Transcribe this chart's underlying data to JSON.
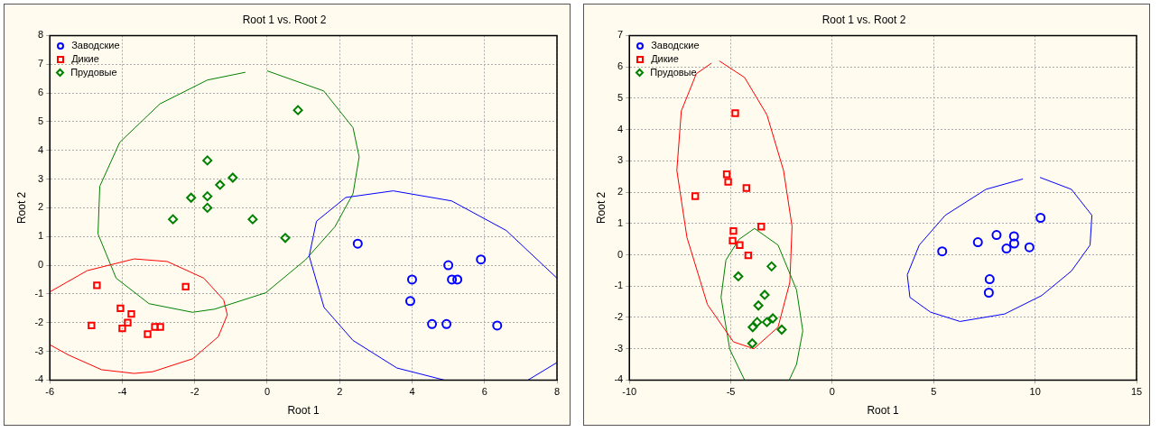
{
  "chart_data": [
    {
      "type": "scatter",
      "title": "Root 1 vs. Root 2",
      "xlabel": "Root 1",
      "ylabel": "Root 2",
      "xlim": [
        -6,
        8
      ],
      "ylim": [
        -4,
        8
      ],
      "xticks": [
        -6,
        -4,
        -2,
        0,
        2,
        4,
        6,
        8
      ],
      "yticks": [
        -4,
        -3,
        -2,
        -1,
        0,
        1,
        2,
        3,
        4,
        5,
        6,
        7,
        8
      ],
      "grid": true,
      "legend": "top left",
      "series": [
        {
          "name": "Заводские",
          "color": "#0000ff",
          "marker": "circle",
          "x": [
            2.5,
            4,
            3.95,
            5,
            5.1,
            5.25,
            5.9,
            4.55,
            4.95,
            6.35
          ],
          "values": [
            0.75,
            -0.5,
            -1.25,
            0,
            -0.5,
            -0.5,
            0.2,
            -2.05,
            -2.05,
            -2.1
          ]
        },
        {
          "name": "Дикие",
          "color": "#ff0000",
          "marker": "square",
          "x": [
            -4.7,
            -2.25,
            -4.05,
            -3.75,
            -3.85,
            -4,
            -4.85,
            -3.3,
            -3.1,
            -2.95
          ],
          "values": [
            -0.7,
            -0.75,
            -1.5,
            -1.7,
            -2,
            -2.2,
            -2.1,
            -2.4,
            -2.15,
            -2.15
          ]
        },
        {
          "name": "Прудовые",
          "color": "#008000",
          "marker": "diamond",
          "x": [
            0.85,
            -1.65,
            -0.95,
            -1.3,
            -2.1,
            -1.65,
            -1.65,
            -2.6,
            -0.4,
            0.5
          ],
          "values": [
            5.4,
            3.65,
            3.05,
            2.8,
            2.35,
            2.4,
            2,
            1.6,
            1.6,
            0.95
          ]
        },
        {
          "type": "line",
          "color": "#0000ff",
          "marker": "none",
          "x": [
            4.89,
            3.58,
            2.37,
            1.57,
            1.16,
            1.36,
            2.17,
            3.48,
            5.09,
            6.6,
            8,
            null,
            8,
            7.2
          ],
          "values": [
            -4,
            -3.58,
            -2.62,
            -1.47,
            0.32,
            1.53,
            2.36,
            2.59,
            2.24,
            1.21,
            -0.45,
            null,
            -3.39,
            -4
          ]
        },
        {
          "type": "line",
          "color": "#ff0000",
          "marker": "none",
          "x": [
            -6,
            -4.97,
            -3.67,
            -2.76,
            -1.75,
            -1.2,
            -1.1,
            -1.35,
            -2.06,
            -3.16,
            -3.67,
            -4.57,
            -5.48,
            -6
          ],
          "values": [
            -0.93,
            -0.19,
            0.22,
            0.13,
            -0.45,
            -1.21,
            -1.73,
            -2.49,
            -3.26,
            -3.71,
            -3.77,
            -3.64,
            -3.13,
            -2.77
          ]
        },
        {
          "type": "line",
          "color": "#008000",
          "marker": "none",
          "x": [
            0,
            1.56,
            2.37,
            2.54,
            2.37,
            1.87,
            1.06,
            -0.04,
            -1.45,
            -2.06,
            -3.26,
            -4.17,
            -4.67,
            -4.62,
            -4.07,
            -2.96,
            -1.65,
            -0.6
          ],
          "values": [
            6.77,
            6.07,
            4.79,
            3.77,
            2.49,
            1.34,
            0.19,
            -0.96,
            -1.53,
            -1.64,
            -1.34,
            -0.45,
            1.09,
            2.75,
            4.28,
            5.62,
            6.45,
            6.72
          ]
        }
      ]
    },
    {
      "type": "scatter",
      "title": "Root 1 vs. Root 2",
      "xlabel": "Root 1",
      "ylabel": "Root 2",
      "xlim": [
        -10,
        15
      ],
      "ylim": [
        -4,
        7
      ],
      "xticks": [
        -10,
        -5,
        0,
        5,
        10,
        15
      ],
      "yticks": [
        -4,
        -3,
        -2,
        -1,
        0,
        1,
        2,
        3,
        4,
        5,
        6,
        7
      ],
      "grid": true,
      "legend": "top left",
      "series": [
        {
          "name": "Заводские",
          "color": "#0000ff",
          "marker": "circle",
          "x": [
            5.42,
            7.18,
            8.1,
            8.96,
            8.59,
            8.97,
            9.72,
            10.27,
            7.76,
            7.72
          ],
          "values": [
            0.11,
            0.4,
            0.63,
            0.59,
            0.2,
            0.36,
            0.24,
            1.18,
            -0.78,
            -1.21
          ]
        },
        {
          "name": "Дикие",
          "color": "#ff0000",
          "marker": "square",
          "x": [
            -4.78,
            -5.2,
            -5.13,
            -4.23,
            -6.75,
            -3.5,
            -4.87,
            -4.91,
            -4.56,
            -4.14
          ],
          "values": [
            4.52,
            2.57,
            2.33,
            2.13,
            1.87,
            0.9,
            0.76,
            0.45,
            0.31,
            -0.02
          ]
        },
        {
          "name": "Прудовые",
          "color": "#008000",
          "marker": "diamond",
          "x": [
            -2.99,
            -4.63,
            -3.33,
            -3.64,
            -2.93,
            -3.7,
            -3.92,
            -3.22,
            -2.49,
            -3.94
          ],
          "values": [
            -0.37,
            -0.69,
            -1.28,
            -1.62,
            -2.03,
            -2.15,
            -2.31,
            -2.15,
            -2.39,
            -2.83
          ]
        },
        {
          "type": "line",
          "color": "#0000ff",
          "marker": "none",
          "x": [
            10.24,
            11.79,
            12.8,
            12.71,
            11.79,
            10.33,
            8.5,
            6.3,
            4.84,
            3.83,
            3.7,
            4.29,
            5.57,
            7.58,
            9.4
          ],
          "values": [
            2.47,
            2.09,
            1.26,
            0.31,
            -0.52,
            -1.3,
            -1.89,
            -2.13,
            -1.83,
            -1.36,
            -0.64,
            0.31,
            1.26,
            2.09,
            2.42
          ]
        },
        {
          "type": "line",
          "color": "#ff0000",
          "marker": "none",
          "x": [
            -5.57,
            -4.32,
            -3.22,
            -2.4,
            -1.98,
            -2.09,
            -2.67,
            -3.86,
            -4.87,
            -6.15,
            -7.16,
            -7.66,
            -7.44,
            -6.7,
            -5.95
          ],
          "values": [
            6.19,
            5.66,
            4.47,
            2.69,
            0.9,
            -0.88,
            -2.31,
            -3,
            -2.78,
            -1.59,
            0.55,
            2.69,
            4.59,
            5.78,
            6.12
          ]
        },
        {
          "type": "line",
          "color": "#008000",
          "marker": "none",
          "x": [
            -3.83,
            -2.67,
            -1.76,
            -1.45,
            -1.76,
            -2.12,
            null,
            -4.32,
            -5.05,
            -5.48,
            -5.24,
            -4.6,
            -3.83
          ],
          "values": [
            0.84,
            0.31,
            -1.12,
            -2.43,
            -3.5,
            -4,
            null,
            -4,
            -3.02,
            -1.36,
            -0.17,
            0.49,
            0.84
          ]
        }
      ]
    }
  ]
}
